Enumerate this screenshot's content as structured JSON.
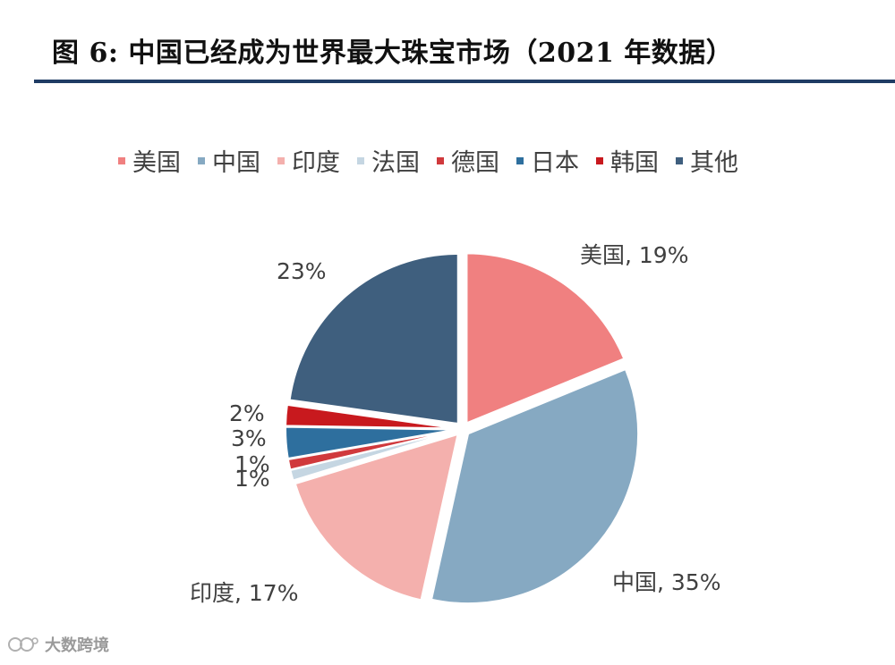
{
  "title": "图 6: 中国已经成为世界最大珠宝市场（2021 年数据）",
  "watermark": "大数跨境",
  "chart_data": {
    "type": "pie",
    "title": "图 6: 中国已经成为世界最大珠宝市场（2021 年数据）",
    "legend_position": "top",
    "start_angle_deg": 0,
    "direction": "clockwise",
    "slices": [
      {
        "name": "美国",
        "value": 19,
        "label": "美国, 19%",
        "color": "#f08080"
      },
      {
        "name": "中国",
        "value": 35,
        "label": "中国, 35%",
        "color": "#86a9c2"
      },
      {
        "name": "印度",
        "value": 17,
        "label": "印度, 17%",
        "color": "#f4b0ad"
      },
      {
        "name": "法国",
        "value": 1,
        "label": "1%",
        "color": "#c5d6e2"
      },
      {
        "name": "德国",
        "value": 1,
        "label": "1%",
        "color": "#d0393c"
      },
      {
        "name": "日本",
        "value": 3,
        "label": "3%",
        "color": "#2e6f9e"
      },
      {
        "name": "韩国",
        "value": 2,
        "label": "2%",
        "color": "#c8191e"
      },
      {
        "name": "其他",
        "value": 23,
        "label": "23%",
        "color": "#3f5f7e"
      }
    ]
  }
}
